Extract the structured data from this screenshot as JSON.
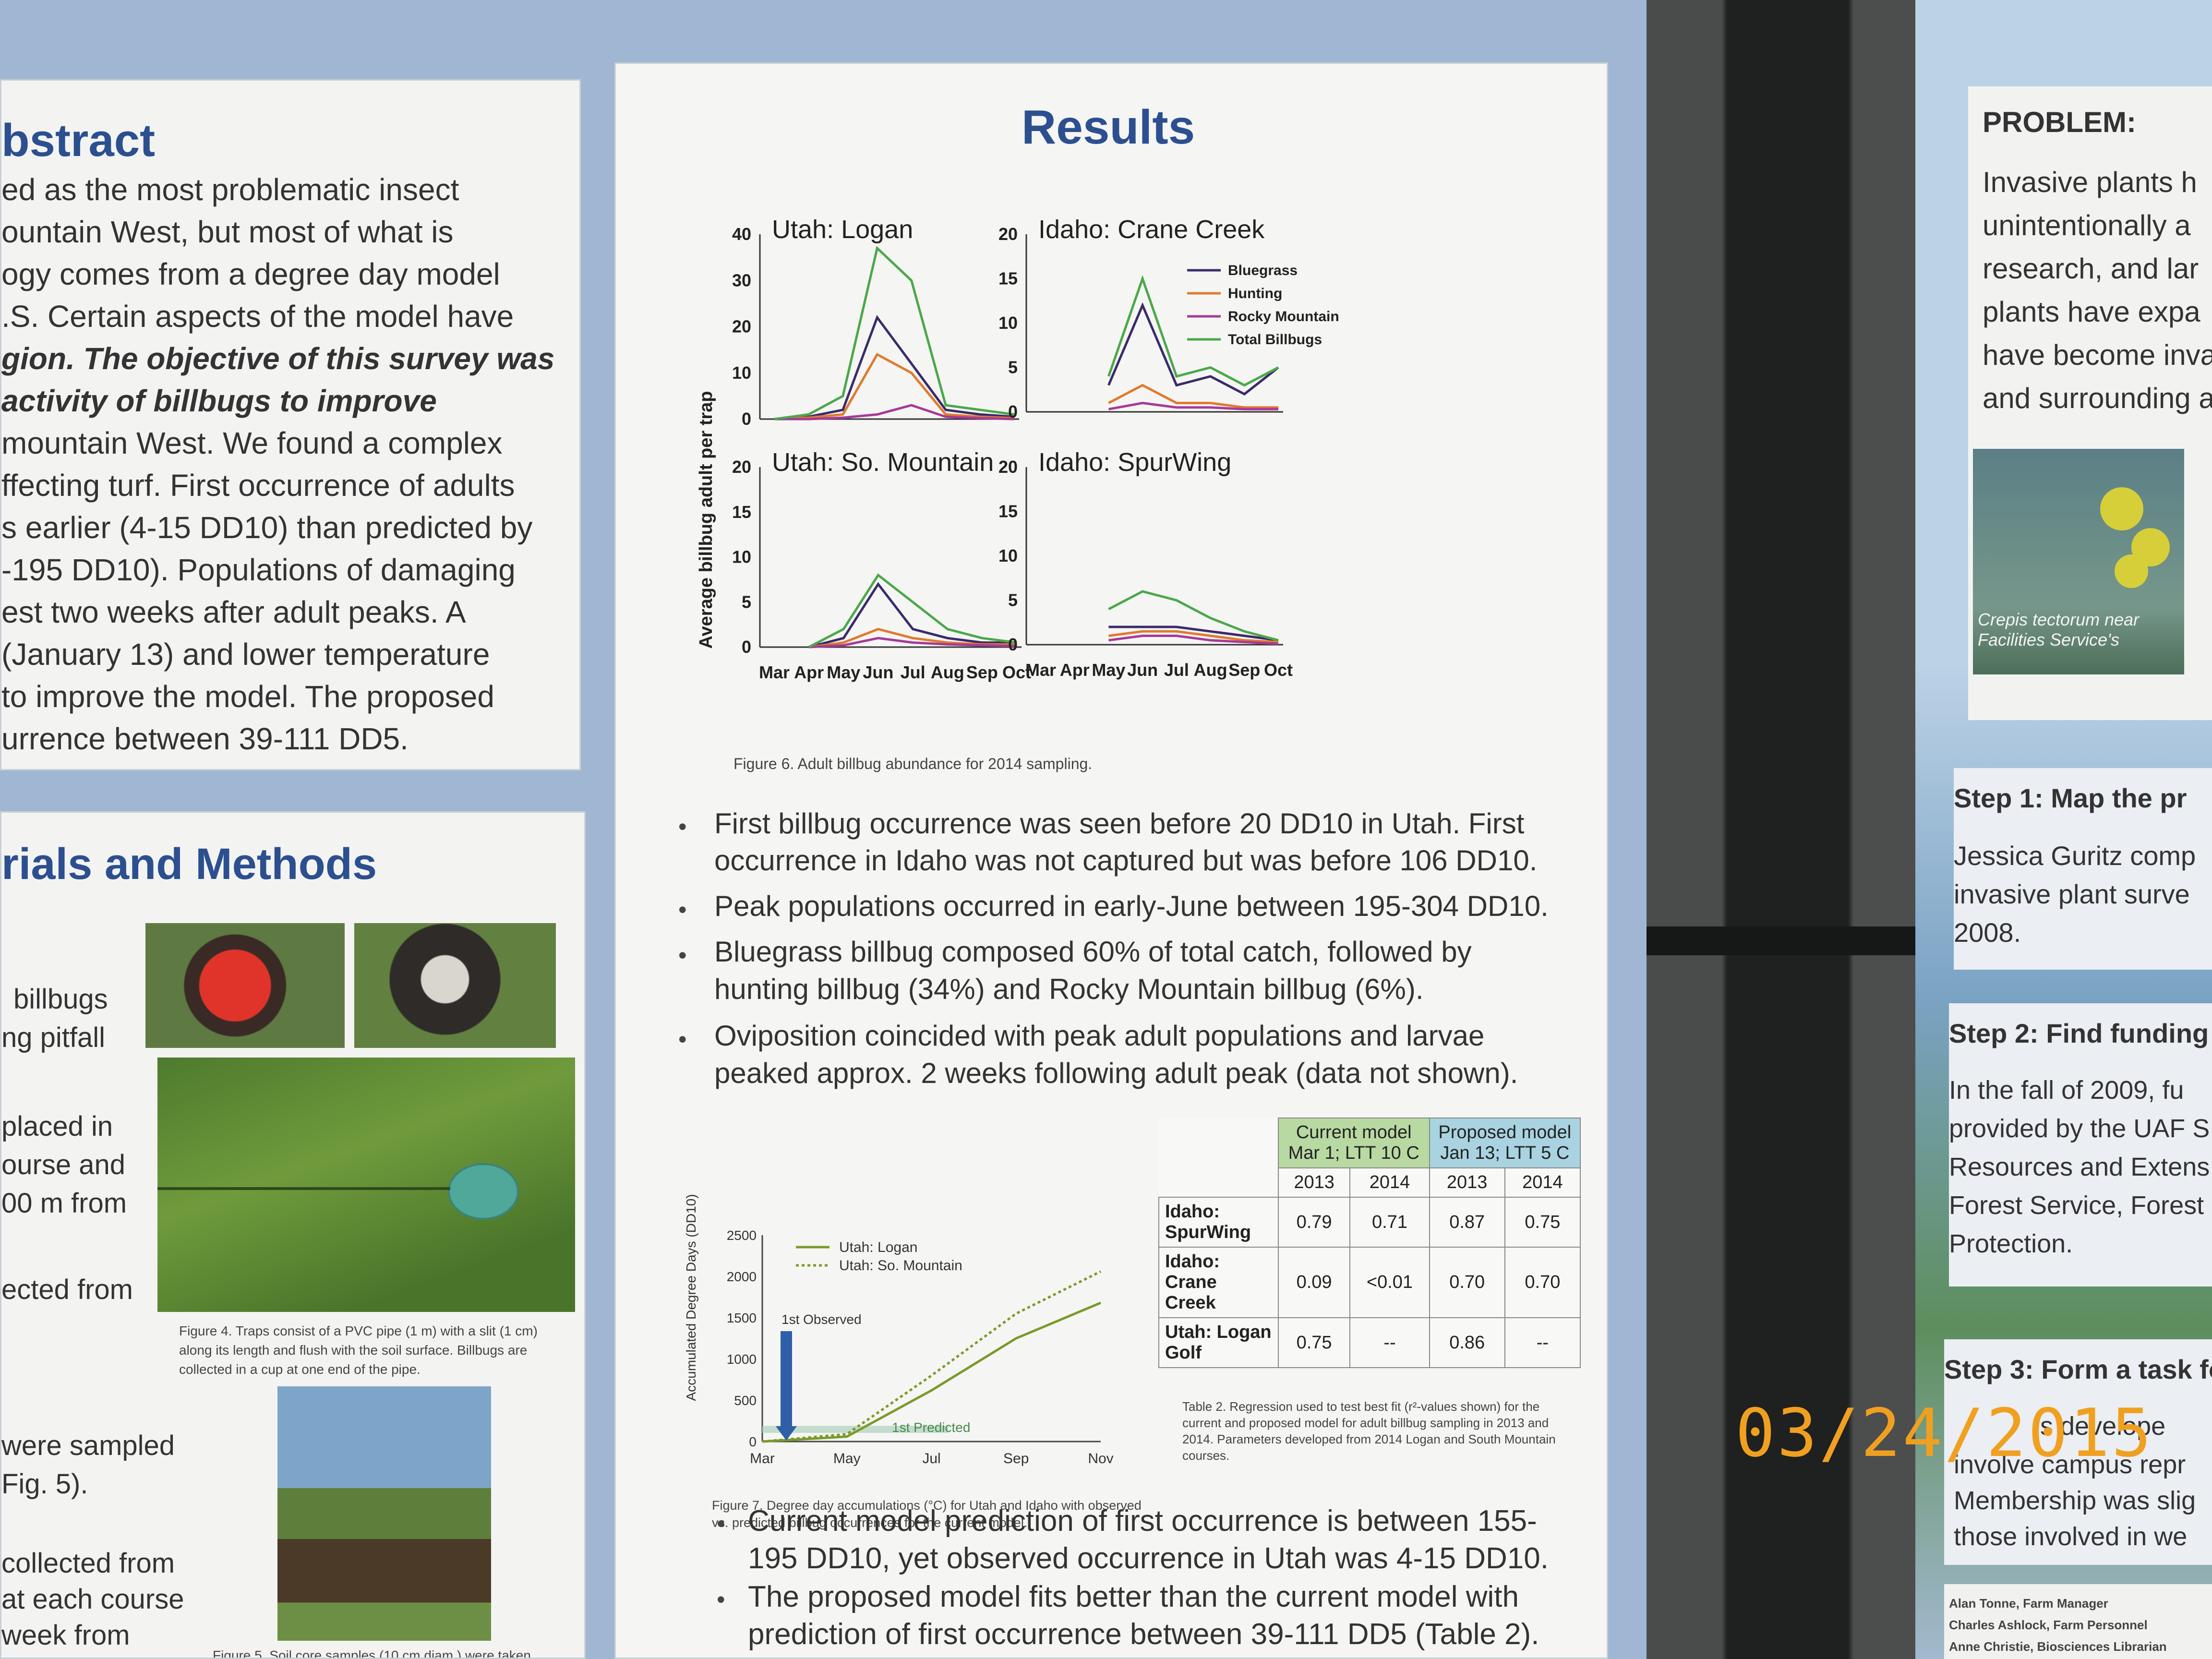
{
  "abstract": {
    "heading": "bstract",
    "lines": [
      "ed as the most problematic insect",
      "ountain West, but most of what is",
      "ogy comes from a degree day model",
      ".S. Certain aspects of the model have",
      "gion. The objective of this survey was",
      " activity of billbugs to improve",
      "mountain West. We found a complex",
      "ffecting turf. First occurrence of adults",
      "s earlier (4-15 DD10) than predicted by",
      "-195 DD10). Populations of damaging",
      "est two weeks after adult peaks. A",
      "(January 13) and lower temperature",
      " to improve the model. The proposed",
      "urrence between 39-111 DD5."
    ]
  },
  "methods": {
    "heading": "rials and Methods",
    "lines": [
      "billbugs",
      "ng pitfall",
      "placed in",
      "ourse and",
      "00 m from",
      "ected from",
      "were sampled",
      "Fig. 5).",
      "collected from",
      "at each course",
      "week from"
    ],
    "fig4_caption": "Figure 4. Traps consist of a PVC pipe (1 m) with a slit (1 cm) along its length and flush with the soil surface. Billbugs are collected in a cup at one end of the pipe.",
    "fig5_caption": "Figure 5. Soil core samples (10 cm diam.) were taken"
  },
  "results": {
    "heading": "Results",
    "y_axis_label": "Average billbug adult per trap",
    "month_labels": [
      "Mar",
      "Apr",
      "May",
      "Jun",
      "Jul",
      "Aug",
      "Sep",
      "Oct"
    ],
    "fig6_caption": "Figure 6. Adult billbug abundance for 2014 sampling.",
    "bullets": [
      "First billbug occurrence was seen  before  20 DD10 in Utah. First",
      "occurrence in Idaho was not captured but was before 106 DD10.",
      "Peak populations occurred in early-June between 195-304 DD10.",
      "Bluegrass billbug composed 60% of total catch, followed by",
      "hunting billbug (34%) and Rocky Mountain billbug (6%).",
      "Oviposition coincided with peak adult populations and larvae",
      "peaked approx. 2 weeks following adult peak (data not shown)."
    ],
    "fig7_caption": "Figure 7. Degree day accumulations (°C) for Utah and Idaho with observed vs. predicted billbug occurrences for the current model.",
    "table2_caption": "Table 2. Regression used to test best fit (r²-values shown) for the current and proposed model for adult billbug sampling in 2013 and 2014. Parameters developed from 2014 Logan and South Mountain courses.",
    "bottom_bullets": [
      "Current model prediction of first occurrence is between 155-",
      "195 DD10, yet observed occurrence in Utah was 4-15 DD10.",
      "The proposed model fits better than the current model with",
      "prediction of first occurrence between 39-111 DD5 (Table 2)."
    ]
  },
  "table2": {
    "header_current": "Current model Mar 1; LTT 10 C",
    "header_proposed": "Proposed model Jan 13; LTT 5 C",
    "years": [
      "2013",
      "2014",
      "2013",
      "2014"
    ],
    "rows": [
      {
        "site": "Idaho: SpurWing",
        "values": [
          "0.79",
          "0.71",
          "0.87",
          "0.75"
        ]
      },
      {
        "site": "Idaho: Crane Creek",
        "values": [
          "0.09",
          "<0.01",
          "0.70",
          "0.70"
        ]
      },
      {
        "site": "Utah: Logan Golf",
        "values": [
          "0.75",
          "--",
          "0.86",
          "--"
        ]
      }
    ]
  },
  "right_poster": {
    "problem_heading": "PROBLEM:",
    "problem_lines": [
      "Invasive plants h",
      "unintentionally a",
      "research, and lar",
      "plants have expa",
      "have become inva",
      "and surrounding a"
    ],
    "photo_caption": "Crepis tectorum near Facilities Service's",
    "step1_heading": "Step 1: Map the pr",
    "step1_lines": [
      "Jessica Guritz comp",
      "invasive plant surve",
      "2008."
    ],
    "step2_heading": "Step 2: Find funding",
    "step2_lines": [
      "In the fall of 2009, fu",
      "provided by the UAF S",
      "Resources and Extens",
      "Forest Service, Forest",
      "Protection."
    ],
    "step3_heading": "Step 3: Form a task fo",
    "step3_lines": [
      "s develope",
      "involve campus repr",
      "Membership was slig",
      "those involved in we"
    ],
    "credits": [
      "Alan Tonne, Farm Manager",
      "Charles Ashlock, Farm Personnel",
      "Anne Christie, Biosciences Librarian"
    ]
  },
  "timestamp": "03/24/2015",
  "chart_data": [
    {
      "type": "line",
      "title": "Utah: Logan",
      "ylim": [
        0,
        40
      ],
      "x": [
        "Mar",
        "Apr",
        "May",
        "Jun",
        "Jul",
        "Aug",
        "Sep",
        "Oct"
      ],
      "series": [
        {
          "name": "Bluegrass",
          "values": [
            0,
            0.5,
            2,
            22,
            12,
            2,
            1,
            0.5
          ]
        },
        {
          "name": "Hunting",
          "values": [
            0,
            0.3,
            1,
            14,
            10,
            1,
            0.5,
            0.2
          ]
        },
        {
          "name": "Rocky Mountain",
          "values": [
            0,
            0,
            0.3,
            1,
            3,
            0.5,
            0.2,
            0
          ]
        },
        {
          "name": "Total Billbugs",
          "values": [
            0,
            1,
            5,
            37,
            30,
            3,
            2,
            1
          ]
        }
      ]
    },
    {
      "type": "line",
      "title": "Idaho: Crane Creek",
      "ylim": [
        0,
        20
      ],
      "x": [
        "Mar",
        "Apr",
        "May",
        "Jun",
        "Jul",
        "Aug",
        "Sep",
        "Oct"
      ],
      "legend": [
        "Bluegrass",
        "Hunting",
        "Rocky Mountain",
        "Total Billbugs"
      ],
      "series": [
        {
          "name": "Bluegrass",
          "values": [
            null,
            null,
            3,
            12,
            3,
            4,
            2,
            5
          ]
        },
        {
          "name": "Hunting",
          "values": [
            null,
            null,
            1,
            3,
            1,
            1,
            0.5,
            0.5
          ]
        },
        {
          "name": "Rocky Mountain",
          "values": [
            null,
            null,
            0.3,
            1,
            0.5,
            0.5,
            0.3,
            0.3
          ]
        },
        {
          "name": "Total Billbugs",
          "values": [
            null,
            null,
            4,
            15,
            4,
            5,
            3,
            5
          ]
        }
      ]
    },
    {
      "type": "line",
      "title": "Utah: So. Mountain",
      "ylim": [
        0,
        20
      ],
      "x": [
        "Mar",
        "Apr",
        "May",
        "Jun",
        "Jul",
        "Aug",
        "Sep",
        "Oct"
      ],
      "series": [
        {
          "name": "Bluegrass",
          "values": [
            null,
            0,
            1,
            7,
            2,
            1,
            0.5,
            0.5
          ]
        },
        {
          "name": "Hunting",
          "values": [
            null,
            0,
            0.5,
            2,
            1,
            0.5,
            0.3,
            0.3
          ]
        },
        {
          "name": "Rocky Mountain",
          "values": [
            null,
            0,
            0.2,
            1,
            0.5,
            0.3,
            0.2,
            0.1
          ]
        },
        {
          "name": "Total Billbugs",
          "values": [
            null,
            0,
            2,
            8,
            5,
            2,
            1,
            0.5
          ]
        }
      ]
    },
    {
      "type": "line",
      "title": "Idaho: SpurWing",
      "ylim": [
        0,
        20
      ],
      "x": [
        "Mar",
        "Apr",
        "May",
        "Jun",
        "Jul",
        "Aug",
        "Sep",
        "Oct"
      ],
      "series": [
        {
          "name": "Bluegrass",
          "values": [
            null,
            null,
            2,
            2,
            2,
            1.5,
            1,
            0.5
          ]
        },
        {
          "name": "Hunting",
          "values": [
            null,
            null,
            1,
            1.5,
            1.5,
            1,
            0.5,
            0.3
          ]
        },
        {
          "name": "Rocky Mountain",
          "values": [
            null,
            null,
            0.5,
            1,
            1,
            0.5,
            0.3,
            0.1
          ]
        },
        {
          "name": "Total Billbugs",
          "values": [
            null,
            null,
            4,
            6,
            5,
            3,
            1.5,
            0.5
          ]
        }
      ]
    },
    {
      "type": "line",
      "ylabel": "Accumulated Degree Days (DD10)",
      "ylim": [
        0,
        2500
      ],
      "x": [
        "Mar",
        "May",
        "Jul",
        "Sep",
        "Nov"
      ],
      "series": [
        {
          "name": "Utah: Logan",
          "values": [
            0,
            60,
            620,
            1250,
            1680
          ]
        },
        {
          "name": "Utah: So. Mountain",
          "values": [
            0,
            90,
            800,
            1550,
            2060
          ]
        }
      ],
      "annotations": [
        "1st Observed",
        "1st Predicted"
      ]
    }
  ]
}
